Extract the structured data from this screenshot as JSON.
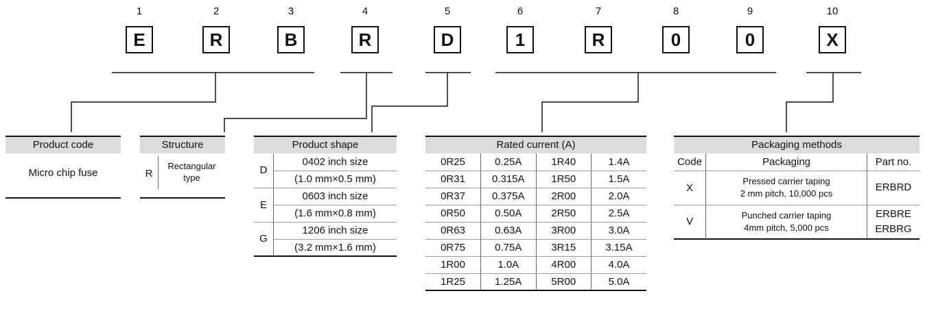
{
  "positions": [
    {
      "index": "1",
      "char": "E"
    },
    {
      "index": "2",
      "char": "R"
    },
    {
      "index": "3",
      "char": "B"
    },
    {
      "index": "4",
      "char": "R"
    },
    {
      "index": "5",
      "char": "D"
    },
    {
      "index": "6",
      "char": "1"
    },
    {
      "index": "7",
      "char": "R"
    },
    {
      "index": "8",
      "char": "0"
    },
    {
      "index": "9",
      "char": "0"
    },
    {
      "index": "10",
      "char": "X"
    }
  ],
  "product_code": {
    "title": "Product code",
    "value": "Micro chip fuse"
  },
  "structure": {
    "title": "Structure",
    "code": "R",
    "desc_line1": "Rectangular",
    "desc_line2": "type"
  },
  "product_shape": {
    "title": "Product shape",
    "rows": [
      {
        "code": "D",
        "line1": "0402 inch size",
        "line2": "(1.0 mm×0.5 mm)"
      },
      {
        "code": "E",
        "line1": "0603 inch size",
        "line2": "(1.6 mm×0.8 mm)"
      },
      {
        "code": "G",
        "line1": "1206 inch size",
        "line2": "(3.2 mm×1.6 mm)"
      }
    ]
  },
  "rated_current": {
    "title": "Rated current (A)",
    "rows": [
      [
        "0R25",
        "0.25A",
        "1R40",
        "1.4A"
      ],
      [
        "0R31",
        "0.315A",
        "1R50",
        "1.5A"
      ],
      [
        "0R37",
        "0.375A",
        "2R00",
        "2.0A"
      ],
      [
        "0R50",
        "0.50A",
        "2R50",
        "2.5A"
      ],
      [
        "0R63",
        "0.63A",
        "3R00",
        "3.0A"
      ],
      [
        "0R75",
        "0.75A",
        "3R15",
        "3.15A"
      ],
      [
        "1R00",
        "1.0A",
        "4R00",
        "4.0A"
      ],
      [
        "1R25",
        "1.25A",
        "5R00",
        "5.0A"
      ]
    ]
  },
  "packaging": {
    "title": "Packaging methods",
    "col_code": "Code",
    "col_packaging": "Packaging",
    "col_part": "Part no.",
    "rows": [
      {
        "code": "X",
        "line1": "Pressed carrier taping",
        "line2": "2 mm pitch, 10,000 pcs",
        "part1": "ERBRD",
        "part2": ""
      },
      {
        "code": "V",
        "line1": "Punched carrier taping",
        "line2": "4mm pitch,  5,000 pcs",
        "part1": "ERBRE",
        "part2": "ERBRG"
      }
    ]
  }
}
